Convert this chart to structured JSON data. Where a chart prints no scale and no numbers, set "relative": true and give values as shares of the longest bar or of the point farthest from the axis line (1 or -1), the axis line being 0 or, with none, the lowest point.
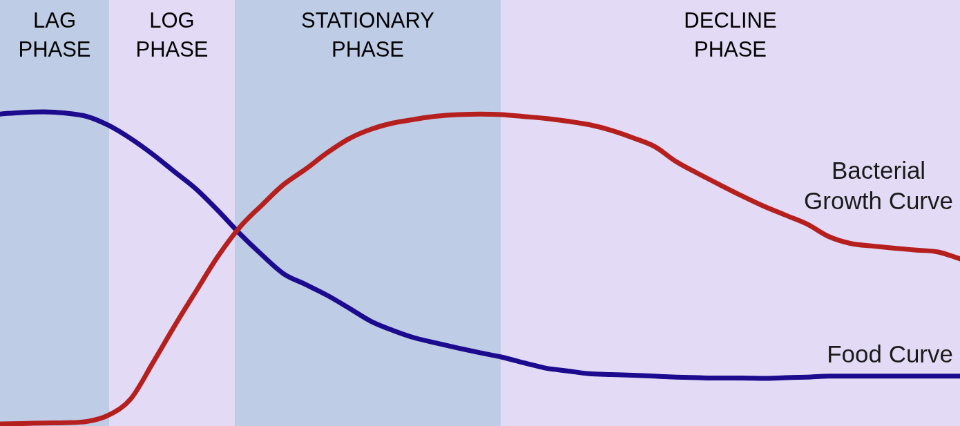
{
  "chart_data": {
    "type": "line",
    "relative": true,
    "tick_labels": false,
    "marker": "none",
    "line_style": "solid",
    "categories": [
      null,
      null,
      null,
      null,
      null,
      null,
      null,
      null,
      null,
      null,
      null,
      null,
      null,
      null,
      null,
      null,
      null,
      null,
      null,
      null,
      null,
      null,
      null,
      null,
      null,
      null,
      null,
      null,
      null,
      null,
      null,
      null,
      null,
      null,
      null,
      null,
      null,
      null,
      null,
      null,
      null,
      null,
      null,
      null,
      null
    ],
    "series": [
      {
        "name": "Bacterial\nGrowth Curve",
        "color": "#b5201f",
        "values": [
          0,
          0.001,
          0.003,
          0.004,
          0.008,
          0.029,
          0.081,
          0.195,
          0.314,
          0.427,
          0.538,
          0.631,
          0.701,
          0.767,
          0.816,
          0.869,
          0.914,
          0.944,
          0.964,
          0.976,
          0.986,
          0.991,
          0.993,
          0.991,
          0.985,
          0.979,
          0.97,
          0.959,
          0.941,
          0.917,
          0.889,
          0.84,
          0.802,
          0.766,
          0.731,
          0.698,
          0.669,
          0.64,
          0.6,
          0.578,
          0.57,
          0.563,
          0.557,
          0.551,
          0.529
        ]
      },
      {
        "name": "Food Curve",
        "color": "#1c0a8f",
        "values": [
          0.993,
          0.998,
          1,
          0.996,
          0.985,
          0.956,
          0.914,
          0.864,
          0.808,
          0.752,
          0.683,
          0.609,
          0.542,
          0.481,
          0.447,
          0.412,
          0.371,
          0.329,
          0.3,
          0.276,
          0.259,
          0.243,
          0.228,
          0.214,
          0.196,
          0.179,
          0.17,
          0.161,
          0.158,
          0.156,
          0.153,
          0.15,
          0.148,
          0.147,
          0.147,
          0.146,
          0.148,
          0.15,
          0.153,
          0.153,
          0.153,
          0.153,
          0.153,
          0.153,
          0.153
        ]
      }
    ],
    "annotations": [
      "LAG\nPHASE",
      "LOG\nPHASE",
      "STATIONARY\nPHASE",
      "DECLINE\nPHASE"
    ]
  }
}
